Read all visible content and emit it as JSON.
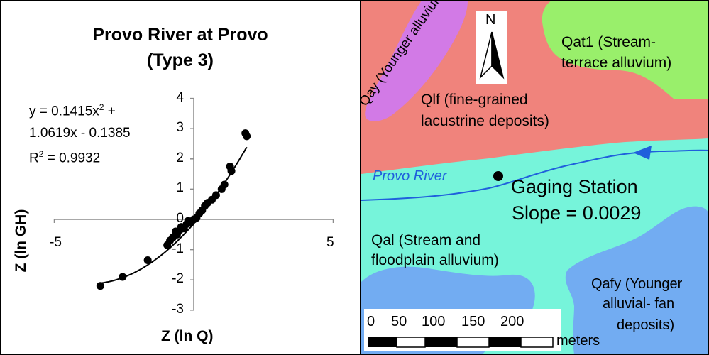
{
  "chart_data": {
    "type": "scatter",
    "title": "Provo River at Provo",
    "subtitle": "(Type 3)",
    "xlabel": "Z (ln Q)",
    "ylabel": "Z (ln GH)",
    "xlim": [
      -5,
      5
    ],
    "ylim": [
      -3,
      4
    ],
    "xticks": [
      "-5",
      "5"
    ],
    "yticks": [
      "4",
      "3",
      "2",
      "1",
      "0",
      "-1",
      "-2",
      "-3"
    ],
    "equation_lines": [
      "y = 0.1415x",
      "1.0619x - 0.1385",
      "R",
      " = 0.9932"
    ],
    "equation_sup": "2",
    "equation_plus": " +",
    "trendline": {
      "a": 0.1415,
      "b": 1.0619,
      "c": -0.1385,
      "x_range": [
        -3.4,
        1.9
      ]
    },
    "points": [
      {
        "x": -3.35,
        "y": -2.2
      },
      {
        "x": -2.55,
        "y": -1.9
      },
      {
        "x": -1.65,
        "y": -1.35
      },
      {
        "x": -0.95,
        "y": -0.85
      },
      {
        "x": -0.85,
        "y": -0.7
      },
      {
        "x": -0.75,
        "y": -0.6
      },
      {
        "x": -0.65,
        "y": -0.4
      },
      {
        "x": -0.6,
        "y": -0.5
      },
      {
        "x": -0.5,
        "y": -0.35
      },
      {
        "x": -0.45,
        "y": -0.25
      },
      {
        "x": -0.35,
        "y": -0.3
      },
      {
        "x": -0.25,
        "y": -0.15
      },
      {
        "x": -0.2,
        "y": -0.05
      },
      {
        "x": -0.1,
        "y": -0.1
      },
      {
        "x": 0.0,
        "y": 0.0
      },
      {
        "x": 0.1,
        "y": 0.05
      },
      {
        "x": 0.2,
        "y": 0.2
      },
      {
        "x": 0.3,
        "y": 0.3
      },
      {
        "x": 0.4,
        "y": 0.45
      },
      {
        "x": 0.5,
        "y": 0.55
      },
      {
        "x": 0.65,
        "y": 0.65
      },
      {
        "x": 0.8,
        "y": 0.8
      },
      {
        "x": 1.0,
        "y": 1.0
      },
      {
        "x": 1.1,
        "y": 1.15
      },
      {
        "x": 1.3,
        "y": 1.75
      },
      {
        "x": 1.35,
        "y": 1.6
      },
      {
        "x": 1.85,
        "y": 2.85
      },
      {
        "x": 1.9,
        "y": 2.75
      }
    ]
  },
  "map": {
    "units": {
      "qay": "Qay (Younger alluvium)",
      "qlf_line1": "Qlf (fine-grained",
      "qlf_line2": "lacustrine deposits)",
      "qat1_line1": "Qat1 (Stream-",
      "qat1_line2": "terrace alluvium)",
      "qal_line1": "Qal (Stream and",
      "qal_line2": "floodplain alluvium)",
      "qafy_line1": "Qafy (Younger",
      "qafy_line2": "alluvial- fan",
      "qafy_line3": "deposits)"
    },
    "river_label": "Provo River",
    "station_line1": "Gaging Station",
    "station_line2": "Slope = 0.0029",
    "north": "N",
    "scale": {
      "ticks": [
        "0",
        "50",
        "100",
        "150",
        "200"
      ],
      "unit": "meters"
    },
    "colors": {
      "lacustrine": "#f0837c",
      "terrace": "#99ef6b",
      "younger_alluvium": "#d27ae6",
      "stream_alluvium": "#76f4da",
      "fan": "#72acf2",
      "river": "#1f5fdc"
    }
  }
}
